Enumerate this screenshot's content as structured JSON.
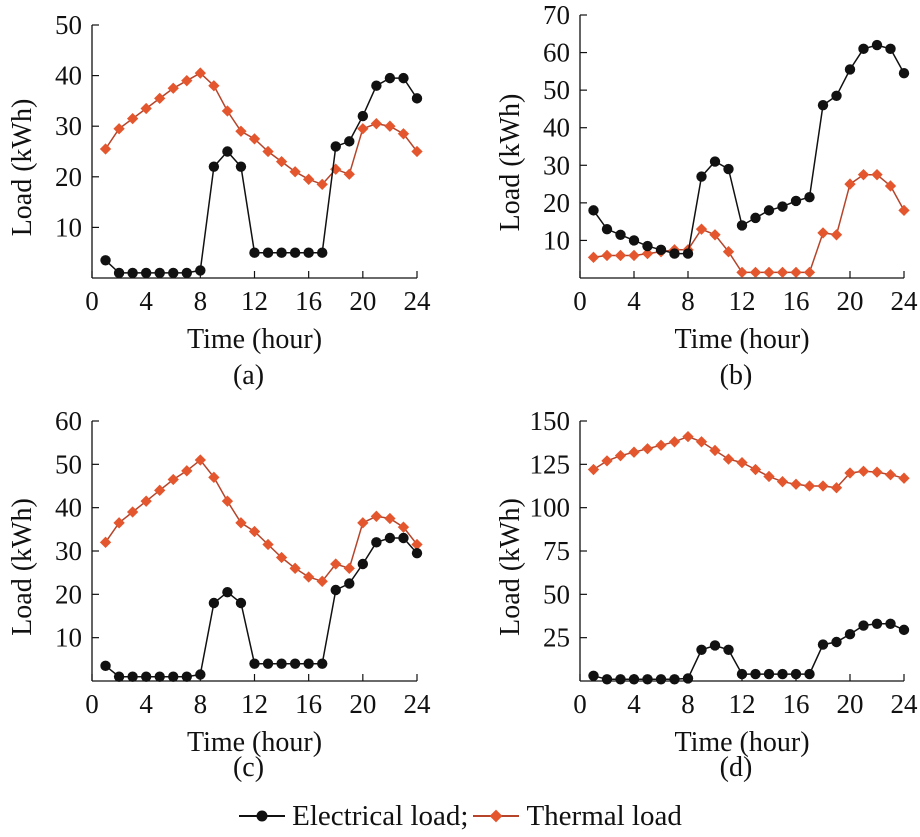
{
  "legend": {
    "electrical_label": "Electrical load;",
    "thermal_label": "Thermal load"
  },
  "colors": {
    "electrical": "#111111",
    "thermal": "#e4572e",
    "thermal_line": "#b5442a"
  },
  "chart_data": [
    {
      "panel": "(a)",
      "type": "line",
      "xlabel": "Time (hour)",
      "ylabel": "Load (kWh)",
      "xlim": [
        0,
        24
      ],
      "ylim": [
        0,
        50
      ],
      "xticks": [
        0,
        4,
        8,
        12,
        16,
        20,
        24
      ],
      "yticks": [
        10,
        20,
        30,
        40,
        50
      ],
      "x": [
        1,
        2,
        3,
        4,
        5,
        6,
        7,
        8,
        9,
        10,
        11,
        12,
        13,
        14,
        15,
        16,
        17,
        18,
        19,
        20,
        21,
        22,
        23,
        24
      ],
      "series": [
        {
          "name": "Electrical load",
          "values": [
            3.5,
            1,
            1,
            1,
            1,
            1,
            1,
            1.5,
            22,
            25,
            22,
            5,
            5,
            5,
            5,
            5,
            5,
            26,
            27,
            32,
            38,
            39.5,
            39.5,
            35.5
          ]
        },
        {
          "name": "Thermal load",
          "values": [
            25.5,
            29.5,
            31.5,
            33.5,
            35.5,
            37.5,
            39,
            40.5,
            38,
            33,
            29,
            27.5,
            25,
            23,
            21,
            19.5,
            18.5,
            21.5,
            20.5,
            29.5,
            30.5,
            30,
            28.5,
            25
          ]
        }
      ]
    },
    {
      "panel": "(b)",
      "type": "line",
      "xlabel": "Time (hour)",
      "ylabel": "Load (kWh)",
      "xlim": [
        0,
        24
      ],
      "ylim": [
        0,
        70
      ],
      "xticks": [
        0,
        4,
        8,
        12,
        16,
        20,
        24
      ],
      "yticks": [
        10,
        20,
        30,
        40,
        50,
        60,
        70
      ],
      "x": [
        1,
        2,
        3,
        4,
        5,
        6,
        7,
        8,
        9,
        10,
        11,
        12,
        13,
        14,
        15,
        16,
        17,
        18,
        19,
        20,
        21,
        22,
        23,
        24
      ],
      "series": [
        {
          "name": "Electrical load",
          "values": [
            18,
            13,
            11.5,
            10,
            8.5,
            7.5,
            6.5,
            6.5,
            27,
            31,
            29,
            14,
            16,
            18,
            19,
            20.5,
            21.5,
            46,
            48.5,
            55.5,
            61,
            62,
            61,
            54.5
          ]
        },
        {
          "name": "Thermal load",
          "values": [
            5.5,
            6,
            6,
            6,
            6.5,
            7,
            7.5,
            7.5,
            13,
            11.5,
            7,
            1.5,
            1.5,
            1.5,
            1.5,
            1.5,
            1.5,
            12,
            11.5,
            25,
            27.5,
            27.5,
            24.5,
            18
          ]
        }
      ]
    },
    {
      "panel": "(c)",
      "type": "line",
      "xlabel": "Time (hour)",
      "ylabel": "Load (kWh)",
      "xlim": [
        0,
        24
      ],
      "ylim": [
        0,
        60
      ],
      "xticks": [
        0,
        4,
        8,
        12,
        16,
        20,
        24
      ],
      "yticks": [
        10,
        20,
        30,
        40,
        50,
        60
      ],
      "x": [
        1,
        2,
        3,
        4,
        5,
        6,
        7,
        8,
        9,
        10,
        11,
        12,
        13,
        14,
        15,
        16,
        17,
        18,
        19,
        20,
        21,
        22,
        23,
        24
      ],
      "series": [
        {
          "name": "Electrical load",
          "values": [
            3.5,
            1,
            1,
            1,
            1,
            1,
            1,
            1.5,
            18,
            20.5,
            18,
            4,
            4,
            4,
            4,
            4,
            4,
            21,
            22.5,
            27,
            32,
            33,
            33,
            29.5
          ]
        },
        {
          "name": "Thermal load",
          "values": [
            32,
            36.5,
            39,
            41.5,
            44,
            46.5,
            48.5,
            51,
            47,
            41.5,
            36.5,
            34.5,
            31.5,
            28.5,
            26,
            24,
            23,
            27,
            26,
            36.5,
            38,
            37.5,
            35.5,
            31.5
          ]
        }
      ]
    },
    {
      "panel": "(d)",
      "type": "line",
      "xlabel": "Time (hour)",
      "ylabel": "Load (kWh)",
      "xlim": [
        0,
        24
      ],
      "ylim": [
        0,
        150
      ],
      "xticks": [
        0,
        4,
        8,
        12,
        16,
        20,
        24
      ],
      "yticks": [
        25,
        50,
        75,
        100,
        125,
        150
      ],
      "x": [
        1,
        2,
        3,
        4,
        5,
        6,
        7,
        8,
        9,
        10,
        11,
        12,
        13,
        14,
        15,
        16,
        17,
        18,
        19,
        20,
        21,
        22,
        23,
        24
      ],
      "series": [
        {
          "name": "Electrical load",
          "values": [
            3,
            1,
            1,
            1,
            1,
            1,
            1,
            1.5,
            18,
            20.5,
            18,
            4,
            4,
            4,
            4,
            4,
            4,
            21,
            22.5,
            27,
            32,
            33,
            33,
            29.5
          ]
        },
        {
          "name": "Thermal load",
          "values": [
            122,
            127,
            130,
            132,
            134,
            136,
            138,
            141,
            138,
            133,
            128,
            126,
            122,
            118,
            115,
            113.5,
            112.5,
            112.5,
            111.5,
            120,
            121,
            120.5,
            119,
            117
          ]
        }
      ]
    }
  ]
}
